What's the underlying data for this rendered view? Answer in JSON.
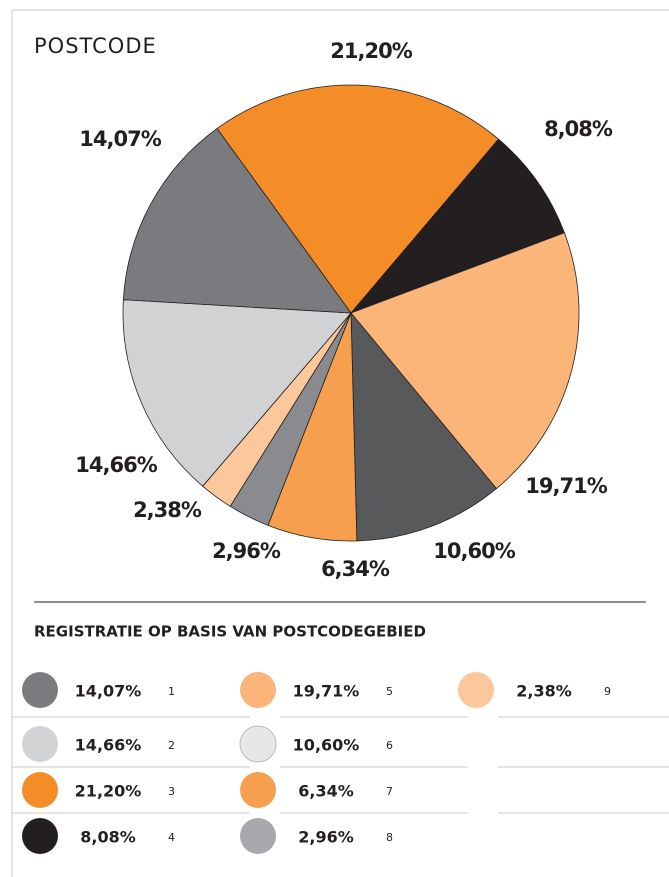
{
  "chart_data": {
    "type": "pie",
    "title": "POSTCODE",
    "subtitle": "REGISTRATIE OP BASIS VAN POSTCODEGEBIED",
    "start_angle": -36,
    "slices": [
      {
        "number": "3",
        "value": 21.2,
        "value_label": "21,20%",
        "color": "#f48c28",
        "legend_color": "#f48c28"
      },
      {
        "number": "4",
        "value": 8.08,
        "value_label": "8,08%",
        "color": "#231f20",
        "legend_color": "#231f20"
      },
      {
        "number": "5",
        "value": 19.71,
        "value_label": "19,71%",
        "color": "#fbb578",
        "legend_color": "#fbb578"
      },
      {
        "number": "6",
        "value": 10.6,
        "value_label": "10,60%",
        "color": "#58595b",
        "legend_color": "#e6e7e8"
      },
      {
        "number": "7",
        "value": 6.34,
        "value_label": "6,34%",
        "color": "#f6a04f",
        "legend_color": "#f6a04f"
      },
      {
        "number": "8",
        "value": 2.96,
        "value_label": "2,96%",
        "color": "#8a8b8e",
        "legend_color": "#a7a9ac"
      },
      {
        "number": "9",
        "value": 2.38,
        "value_label": "2,38%",
        "color": "#fcc79a",
        "legend_color": "#fcc79a"
      },
      {
        "number": "2",
        "value": 14.66,
        "value_label": "14,66%",
        "color": "#d1d2d4",
        "legend_color": "#d1d2d4"
      },
      {
        "number": "1",
        "value": 14.07,
        "value_label": "14,07%",
        "color": "#7a7b7e",
        "legend_color": "#7a7b7e"
      }
    ]
  }
}
